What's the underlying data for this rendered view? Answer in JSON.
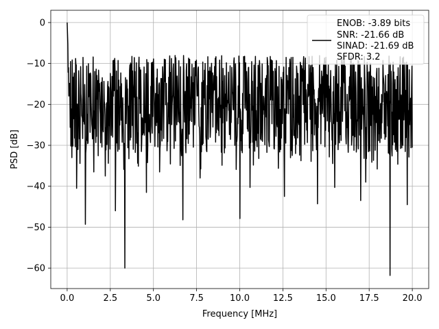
{
  "chart_data": {
    "type": "line",
    "title": "",
    "xlabel": "Frequency [MHz]",
    "ylabel": "PSD [dB]",
    "xlim": [
      -0.95,
      20.95
    ],
    "ylim": [
      -65,
      3
    ],
    "xticks": [
      0.0,
      2.5,
      5.0,
      7.5,
      10.0,
      12.5,
      15.0,
      17.5,
      20.0
    ],
    "xtick_labels": [
      "0.0",
      "2.5",
      "5.0",
      "7.5",
      "10.0",
      "12.5",
      "15.0",
      "17.5",
      "20.0"
    ],
    "yticks": [
      0,
      -10,
      -20,
      -30,
      -40,
      -50,
      -60
    ],
    "ytick_labels": [
      "0",
      "−10",
      "−20",
      "−30",
      "−40",
      "−50",
      "−60"
    ],
    "grid": true,
    "legend_position": "top-right",
    "series": [
      {
        "name": "ENOB: -3.89 bits\nSNR: -21.66 dB\nSINAD: -21.69 dB\nSFDR: 3.2",
        "color": "#000000",
        "x_range": [
          0,
          20
        ],
        "n_points": 1024,
        "baseline": -20,
        "max_peak": 0,
        "max_peak_x": 0,
        "approx_upper_envelope": -8,
        "approx_lower_envelope": -32,
        "deep_dips": [
          {
            "x": 0.55,
            "y": -40.5
          },
          {
            "x": 1.05,
            "y": -49.3
          },
          {
            "x": 1.55,
            "y": -36.5
          },
          {
            "x": 2.2,
            "y": -37.5
          },
          {
            "x": 2.8,
            "y": -46
          },
          {
            "x": 3.35,
            "y": -60
          },
          {
            "x": 4.6,
            "y": -41.5
          },
          {
            "x": 5.35,
            "y": -36.5
          },
          {
            "x": 6.7,
            "y": -48.2
          },
          {
            "x": 7.7,
            "y": -38
          },
          {
            "x": 10.0,
            "y": -47.9
          },
          {
            "x": 10.6,
            "y": -40.3
          },
          {
            "x": 12.6,
            "y": -42.5
          },
          {
            "x": 14.5,
            "y": -44.3
          },
          {
            "x": 15.5,
            "y": -40.3
          },
          {
            "x": 17.0,
            "y": -43.5
          },
          {
            "x": 17.3,
            "y": -39
          },
          {
            "x": 18.7,
            "y": -61.8
          },
          {
            "x": 19.7,
            "y": -44.5
          }
        ]
      }
    ],
    "legend_lines": [
      "ENOB: -3.89 bits",
      "SNR: -21.66 dB",
      "SINAD: -21.69 dB",
      "SFDR: 3.2"
    ]
  }
}
